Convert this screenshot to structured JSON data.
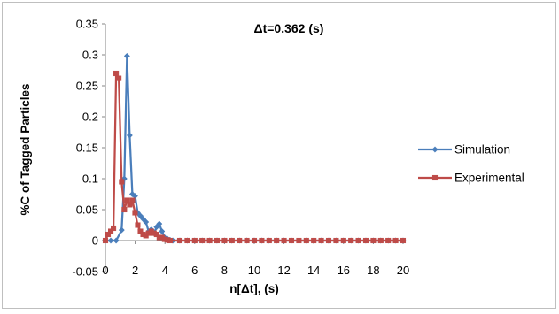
{
  "chart_data": {
    "type": "line",
    "title": "Δt=0.362 (s)",
    "xlabel": "n[Δt], (s)",
    "ylabel": "%C of Tagged Particles",
    "xlim": [
      0,
      20
    ],
    "ylim": [
      -0.05,
      0.35
    ],
    "xticks": [
      "0",
      "2",
      "4",
      "6",
      "8",
      "10",
      "12",
      "14",
      "16",
      "18",
      "20"
    ],
    "yticks": [
      "-0.05",
      "0",
      "0.05",
      "0.1",
      "0.15",
      "0.2",
      "0.25",
      "0.3",
      "0.35"
    ],
    "grid": false,
    "legend_position": "right",
    "series": [
      {
        "name": "Simulation",
        "color": "#4A7EBB",
        "marker": "diamond",
        "points": [
          [
            0,
            0
          ],
          [
            0.36,
            0
          ],
          [
            0.72,
            0
          ],
          [
            1.09,
            0.017
          ],
          [
            1.27,
            0.1
          ],
          [
            1.45,
            0.298
          ],
          [
            1.63,
            0.17
          ],
          [
            1.81,
            0.075
          ],
          [
            1.99,
            0.072
          ],
          [
            2.17,
            0.045
          ],
          [
            2.35,
            0.04
          ],
          [
            2.53,
            0.035
          ],
          [
            2.72,
            0.03
          ],
          [
            2.9,
            0.015
          ],
          [
            3.08,
            0.018
          ],
          [
            3.26,
            0.012
          ],
          [
            3.44,
            0.022
          ],
          [
            3.62,
            0.027
          ],
          [
            3.8,
            0.015
          ],
          [
            3.98,
            0.005
          ],
          [
            4.16,
            0.003
          ],
          [
            4.34,
            0.001
          ],
          [
            4.53,
            0
          ],
          [
            5,
            0
          ],
          [
            5.5,
            0
          ],
          [
            6,
            0
          ],
          [
            6.5,
            0
          ],
          [
            7,
            0
          ],
          [
            7.5,
            0
          ],
          [
            8,
            0
          ],
          [
            8.5,
            0
          ],
          [
            9,
            0
          ],
          [
            9.5,
            0
          ],
          [
            10,
            0
          ],
          [
            10.5,
            0
          ],
          [
            11,
            0
          ],
          [
            11.5,
            0
          ],
          [
            12,
            0
          ],
          [
            12.5,
            0
          ],
          [
            13,
            0
          ],
          [
            13.5,
            0
          ],
          [
            14,
            0
          ],
          [
            14.5,
            0
          ],
          [
            15,
            0
          ],
          [
            15.5,
            0
          ],
          [
            16,
            0
          ],
          [
            16.5,
            0
          ],
          [
            17,
            0
          ],
          [
            17.5,
            0
          ],
          [
            18,
            0
          ],
          [
            18.5,
            0
          ],
          [
            19,
            0
          ],
          [
            19.5,
            0
          ],
          [
            20,
            0
          ]
        ]
      },
      {
        "name": "Experimental",
        "color": "#BE4B48",
        "marker": "square",
        "points": [
          [
            0,
            0
          ],
          [
            0.18,
            0.01
          ],
          [
            0.36,
            0.015
          ],
          [
            0.54,
            0.02
          ],
          [
            0.72,
            0.27
          ],
          [
            0.9,
            0.262
          ],
          [
            1.09,
            0.095
          ],
          [
            1.27,
            0.05
          ],
          [
            1.45,
            0.065
          ],
          [
            1.63,
            0.058
          ],
          [
            1.81,
            0.065
          ],
          [
            1.99,
            0.045
          ],
          [
            2.17,
            0.025
          ],
          [
            2.35,
            0.015
          ],
          [
            2.53,
            0.01
          ],
          [
            2.72,
            0.008
          ],
          [
            2.9,
            0.012
          ],
          [
            3.08,
            0.015
          ],
          [
            3.26,
            0.012
          ],
          [
            3.44,
            0.01
          ],
          [
            3.62,
            0.005
          ],
          [
            3.8,
            0.005
          ],
          [
            3.98,
            0.002
          ],
          [
            4.16,
            0.001
          ],
          [
            4.34,
            0
          ],
          [
            5,
            0
          ],
          [
            5.5,
            0
          ],
          [
            6,
            0
          ],
          [
            6.5,
            0
          ],
          [
            7,
            0
          ],
          [
            7.5,
            0
          ],
          [
            8,
            0
          ],
          [
            8.5,
            0
          ],
          [
            9,
            0
          ],
          [
            9.5,
            0
          ],
          [
            10,
            0
          ],
          [
            10.5,
            0
          ],
          [
            11,
            0
          ],
          [
            11.5,
            0
          ],
          [
            12,
            0
          ],
          [
            12.5,
            0
          ],
          [
            13,
            0
          ],
          [
            13.5,
            0
          ],
          [
            14,
            0
          ],
          [
            14.5,
            0
          ],
          [
            15,
            0
          ],
          [
            15.5,
            0
          ],
          [
            16,
            0
          ],
          [
            16.5,
            0
          ],
          [
            17,
            0
          ],
          [
            17.5,
            0
          ],
          [
            18,
            0
          ],
          [
            18.5,
            0
          ],
          [
            19,
            0
          ],
          [
            19.5,
            0
          ],
          [
            20,
            0
          ]
        ]
      }
    ]
  }
}
